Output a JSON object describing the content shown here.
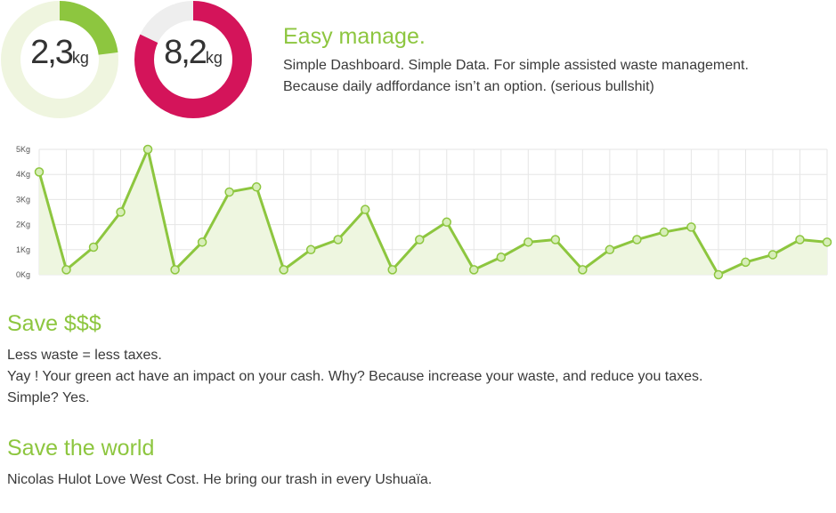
{
  "gauges": [
    {
      "value": "2,3",
      "unit": "kg",
      "color": "#8dc63f",
      "track_color": "#eff5df",
      "fraction": 0.23
    },
    {
      "value": "8,2",
      "unit": "kg",
      "color": "#d4145a",
      "track_color": "#eeeeee",
      "fraction": 0.82
    }
  ],
  "intro": {
    "title": "Easy manage.",
    "line1": "Simple Dashboard. Simple Data. For simple assisted  waste management.",
    "line2": "Because daily adffordance isn’t an option. (serious bullshit)"
  },
  "chart_data": {
    "type": "area",
    "title": "",
    "xlabel": "",
    "ylabel": "",
    "ylim": [
      0,
      5
    ],
    "y_ticks": [
      "0Kg",
      "1Kg",
      "2Kg",
      "3Kg",
      "4Kg",
      "5Kg"
    ],
    "grid": true,
    "line_color": "#8dc63f",
    "fill_color": "#eef6e0",
    "point_fill": "#d7eeb8",
    "series": [
      {
        "values": [
          4.1,
          0.2,
          1.1,
          2.5,
          5.0,
          0.2,
          1.3,
          3.3,
          3.5,
          0.2,
          1.0,
          1.4,
          2.6,
          0.2,
          1.4,
          2.1,
          0.2,
          0.7,
          1.3,
          1.4,
          0.2,
          1.0,
          1.4,
          1.7,
          1.9,
          0.0,
          0.5,
          0.8,
          1.4,
          1.3
        ]
      }
    ]
  },
  "save_money": {
    "title": "Save $$$",
    "line1": "Less waste = less taxes.",
    "line2": "Yay ! Your green act have an impact on your cash. Why? Because increase your waste, and reduce you taxes.",
    "line3": "Simple? Yes."
  },
  "save_world": {
    "title": "Save the world",
    "line1": "Nicolas Hulot Love West Cost. He bring our trash in every Ushuaïa."
  }
}
